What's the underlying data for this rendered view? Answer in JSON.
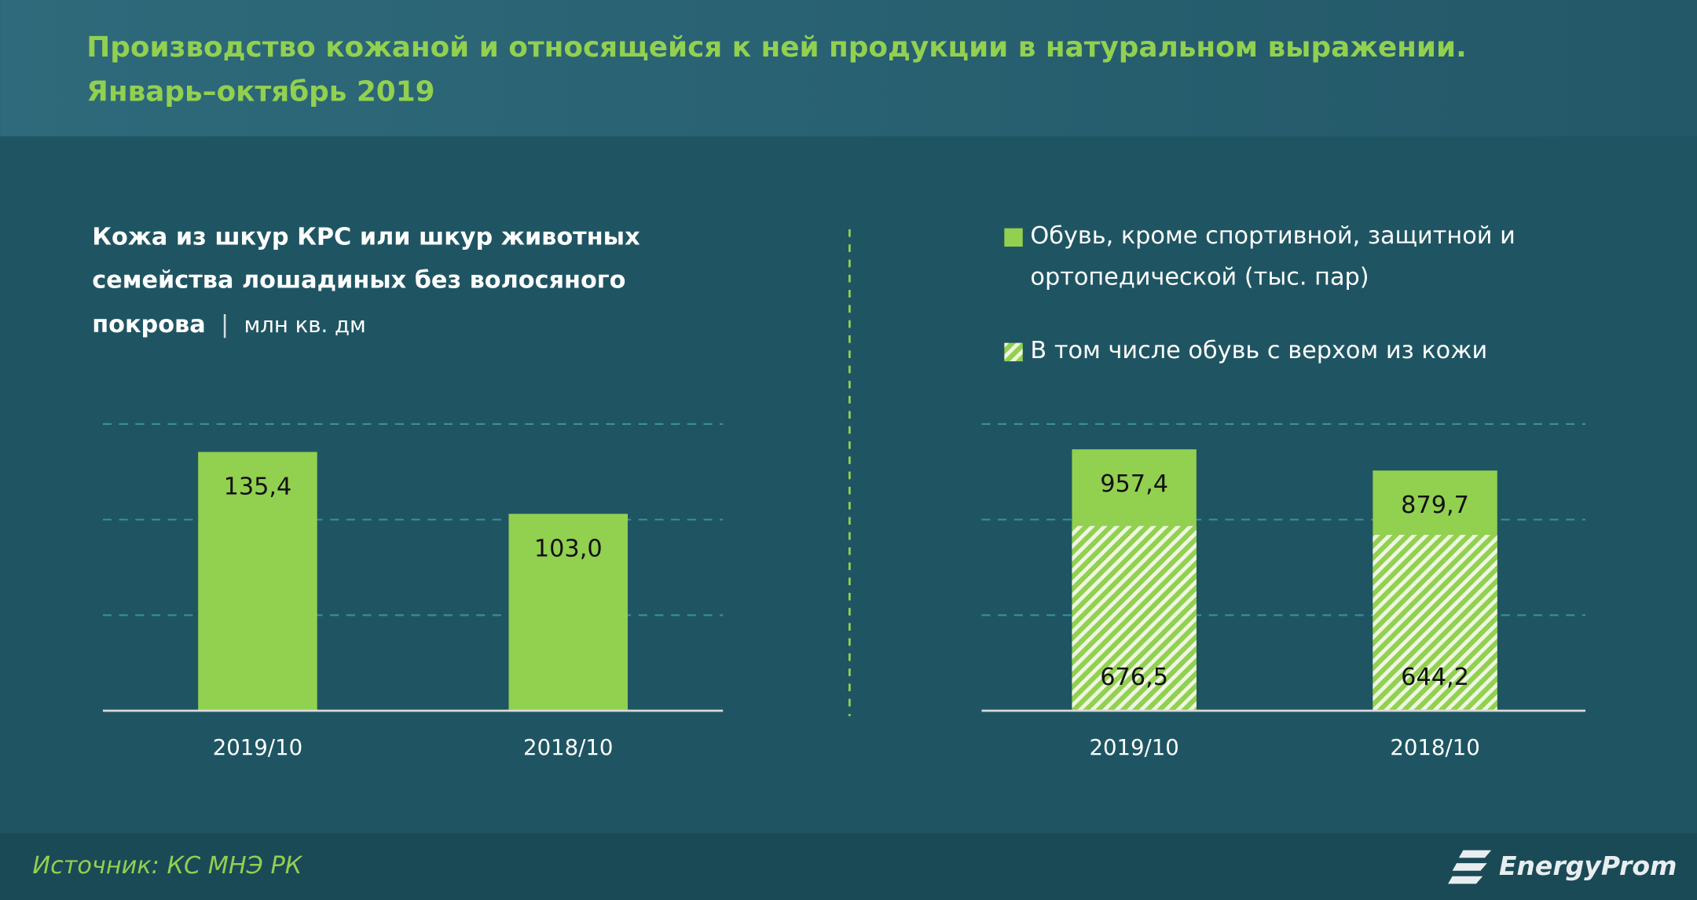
{
  "header": {
    "title": "Производство кожаной и относящейся к ней продукции в натуральном выражении.",
    "subtitle": "Январь–октябрь 2019"
  },
  "chart_data": [
    {
      "type": "bar",
      "title": "Кожа из шкур КРС или шкур животных семейства лошадиных без волосяного покрова",
      "unit": "млн кв. дм",
      "categories": [
        "2019/10",
        "2018/10"
      ],
      "values": [
        135.4,
        103.0
      ],
      "value_labels": [
        "135,4",
        "103,0"
      ],
      "color": "#92d050",
      "ylim": [
        0,
        150
      ],
      "yticks": [
        50,
        100,
        150
      ],
      "grid": true
    },
    {
      "type": "bar",
      "barmode": "overlay",
      "categories": [
        "2019/10",
        "2018/10"
      ],
      "series": [
        {
          "name": "Обувь, кроме спортивной, защитной и ортопедической (тыс. пар)",
          "color": "#92d050",
          "pattern": "solid",
          "values": [
            957.4,
            879.7
          ],
          "value_labels": [
            "957,4",
            "879,7"
          ]
        },
        {
          "name": "В том числе обувь с верхом из кожи",
          "color": "#92d050",
          "pattern": "hatch",
          "values": [
            676.5,
            644.2
          ],
          "value_labels": [
            "676,5",
            "644,2"
          ]
        }
      ],
      "ylim": [
        0,
        1050
      ],
      "yticks": [
        350,
        700,
        1050
      ],
      "grid": true
    }
  ],
  "footer": {
    "source": "Источник: КС МНЭ РК",
    "logo": "EnergyProm"
  }
}
